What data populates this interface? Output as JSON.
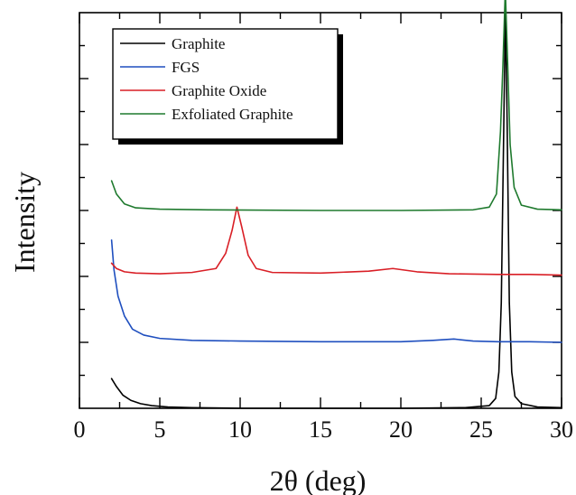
{
  "chart_data": {
    "type": "line",
    "xlabel": "2θ  (deg)",
    "ylabel": "Intensity",
    "xlim": [
      0,
      30
    ],
    "xticks": [
      0,
      5,
      10,
      15,
      20,
      25,
      30
    ],
    "xtick_labels": [
      "0",
      "5",
      "10",
      "15",
      "20",
      "25",
      "30"
    ],
    "ylim": [
      0,
      6
    ],
    "yticks_unlabeled": true,
    "legend": {
      "position": "top-left",
      "entries": [
        "Graphite",
        "FGS",
        "Graphite Oxide",
        "Exfoliated Graphite"
      ]
    },
    "series": [
      {
        "name": "Graphite",
        "color": "#000000",
        "x": [
          2.0,
          2.3,
          2.7,
          3.2,
          3.8,
          4.5,
          5.5,
          7,
          10,
          15,
          20,
          24,
          25.5,
          25.9,
          26.1,
          26.25,
          26.4,
          26.5,
          26.6,
          26.75,
          26.9,
          27.1,
          27.5,
          28.5,
          30
        ],
        "y": [
          0.45,
          0.33,
          0.2,
          0.12,
          0.07,
          0.04,
          0.02,
          0.01,
          0.0,
          0.0,
          0.0,
          0.01,
          0.04,
          0.15,
          0.55,
          1.6,
          4.2,
          6.0,
          4.6,
          1.6,
          0.55,
          0.18,
          0.07,
          0.02,
          0.01
        ]
      },
      {
        "name": "FGS",
        "color": "#1f4fbf",
        "x": [
          2.0,
          2.15,
          2.4,
          2.8,
          3.3,
          4.0,
          5.0,
          7,
          10,
          15,
          20,
          22,
          23.3,
          24.5,
          26,
          28,
          30
        ],
        "y": [
          2.55,
          2.1,
          1.7,
          1.4,
          1.2,
          1.11,
          1.06,
          1.03,
          1.02,
          1.01,
          1.01,
          1.03,
          1.05,
          1.02,
          1.01,
          1.01,
          1.0
        ]
      },
      {
        "name": "Graphite Oxide",
        "color": "#d91f26",
        "x": [
          2.0,
          2.3,
          2.8,
          3.5,
          5,
          7,
          8.5,
          9.1,
          9.5,
          9.8,
          10.1,
          10.5,
          11.0,
          12,
          15,
          18,
          19.5,
          21,
          23,
          26,
          28,
          30
        ],
        "y": [
          2.2,
          2.12,
          2.07,
          2.05,
          2.04,
          2.06,
          2.12,
          2.35,
          2.7,
          3.05,
          2.75,
          2.32,
          2.12,
          2.06,
          2.05,
          2.08,
          2.12,
          2.07,
          2.04,
          2.03,
          2.03,
          2.02
        ]
      },
      {
        "name": "Exfoliated Graphite",
        "color": "#1f7a2e",
        "x": [
          2.0,
          2.3,
          2.8,
          3.5,
          5,
          8,
          15,
          20,
          24.5,
          25.5,
          25.95,
          26.2,
          26.35,
          26.5,
          26.65,
          26.8,
          27.05,
          27.5,
          28.5,
          30
        ],
        "y": [
          3.45,
          3.25,
          3.1,
          3.04,
          3.02,
          3.01,
          3.0,
          3.0,
          3.01,
          3.05,
          3.25,
          4.2,
          5.2,
          6.35,
          5.2,
          4.0,
          3.35,
          3.08,
          3.02,
          3.01
        ]
      }
    ]
  }
}
